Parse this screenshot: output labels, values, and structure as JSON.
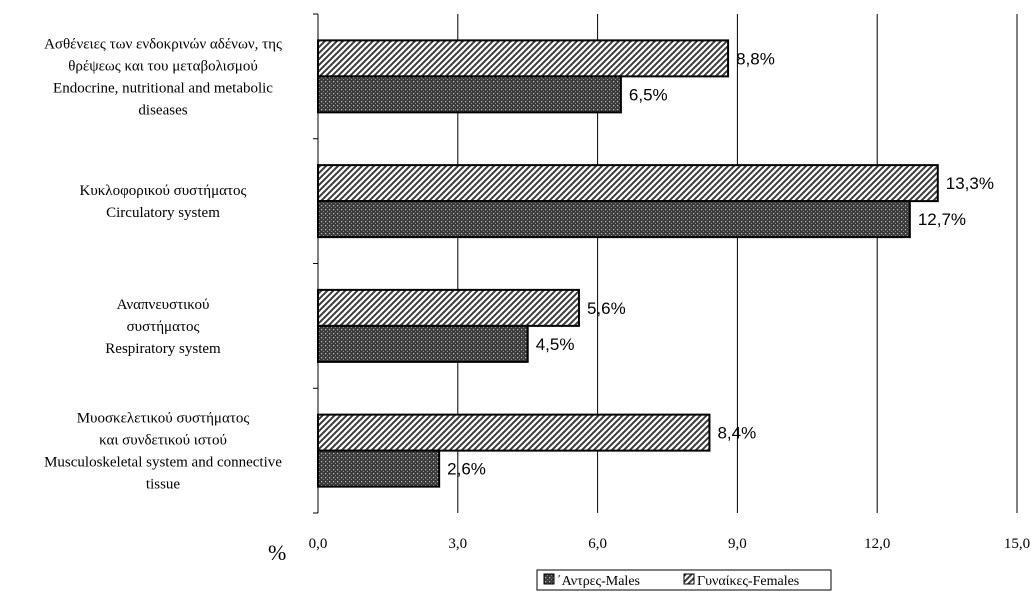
{
  "chart_data": {
    "type": "bar",
    "orientation": "horizontal",
    "categories": [
      [
        "Ασθένειες των ενδοκρινών αδένων, της",
        "θρέψεως και του μεταβολισμού",
        "Endocrine, nutritional and metabolic",
        "diseases"
      ],
      [
        "Κυκλοφορικού συστήματος",
        "Circulatory system"
      ],
      [
        "Αναπνευστικού",
        "συστήματος",
        "Respiratory system"
      ],
      [
        "Μυοσκελετικού συστήματος",
        "και συνδετικού ιστού",
        "Musculoskeletal system and connective",
        "tissue"
      ]
    ],
    "series": [
      {
        "name": "Γυναίκες-Females",
        "values": [
          8.8,
          13.3,
          5.6,
          8.4
        ],
        "labels": [
          "8,8%",
          "13,3%",
          "5,6%",
          "8,4%"
        ],
        "pattern": "diagonal-stripes"
      },
      {
        "name": "΄Αντρες-Males",
        "values": [
          6.5,
          12.7,
          4.5,
          2.6
        ],
        "labels": [
          "6,5%",
          "12,7%",
          "4,5%",
          "2,6%"
        ],
        "pattern": "dark-dots"
      }
    ],
    "x_ticks": [
      "0,0",
      "3,0",
      "6,0",
      "9,0",
      "12,0",
      "15,0"
    ],
    "x_tick_values": [
      0,
      3,
      6,
      9,
      12,
      15
    ],
    "xlim": [
      0,
      15
    ],
    "unit_label": "%",
    "grid": "vertical",
    "legend": {
      "position": "bottom-right",
      "order": [
        "΄Αντρες-Males",
        "Γυναίκες-Females"
      ]
    },
    "colors": {
      "bar_fill": "#4a4a4a",
      "stripe": "#3a3a3a",
      "outline": "#000000",
      "grid": "#000000"
    }
  }
}
